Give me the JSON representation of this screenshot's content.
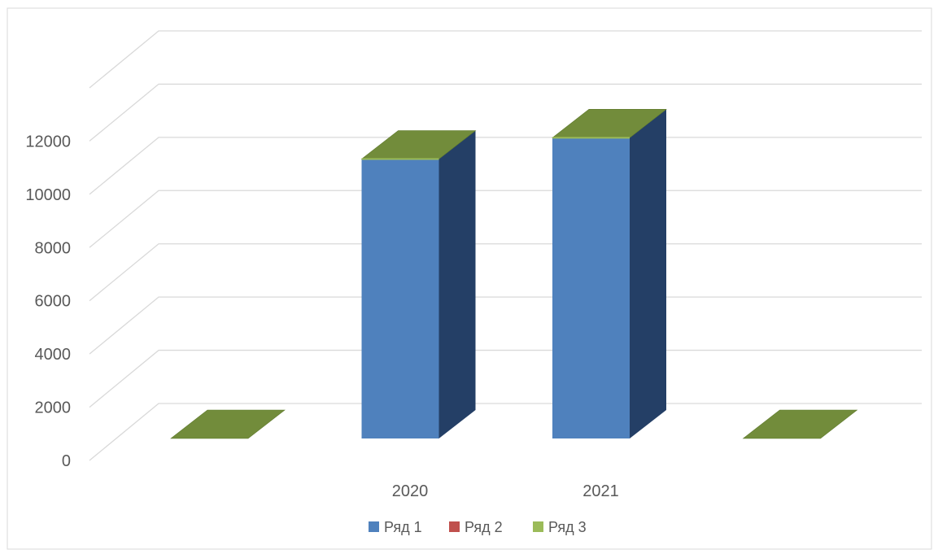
{
  "chart_data": {
    "type": "bar",
    "title": "",
    "xlabel": "",
    "ylabel": "",
    "categories": [
      "",
      "2020",
      "2021",
      ""
    ],
    "series": [
      {
        "name": "Ряд 1",
        "color": "#4F81BD",
        "values": [
          0,
          10500,
          11300,
          0
        ]
      },
      {
        "name": "Ряд 2",
        "color": "#C0504D",
        "values": [
          0,
          0,
          0,
          0
        ]
      },
      {
        "name": "Ряд 3",
        "color": "#9BBB59",
        "values": [
          0,
          0,
          0,
          0
        ]
      }
    ],
    "yticks": [
      "0",
      "2000",
      "4000",
      "6000",
      "8000",
      "10000",
      "12000"
    ],
    "ylim": [
      0,
      12000
    ],
    "grid": true,
    "style": "3d-column",
    "legend": {
      "placement": "bottom"
    }
  },
  "colors": {
    "gridline": "#D9D9D9",
    "text": "#595959",
    "bar_side": "#243F66",
    "bar_top": "#728C3B"
  }
}
